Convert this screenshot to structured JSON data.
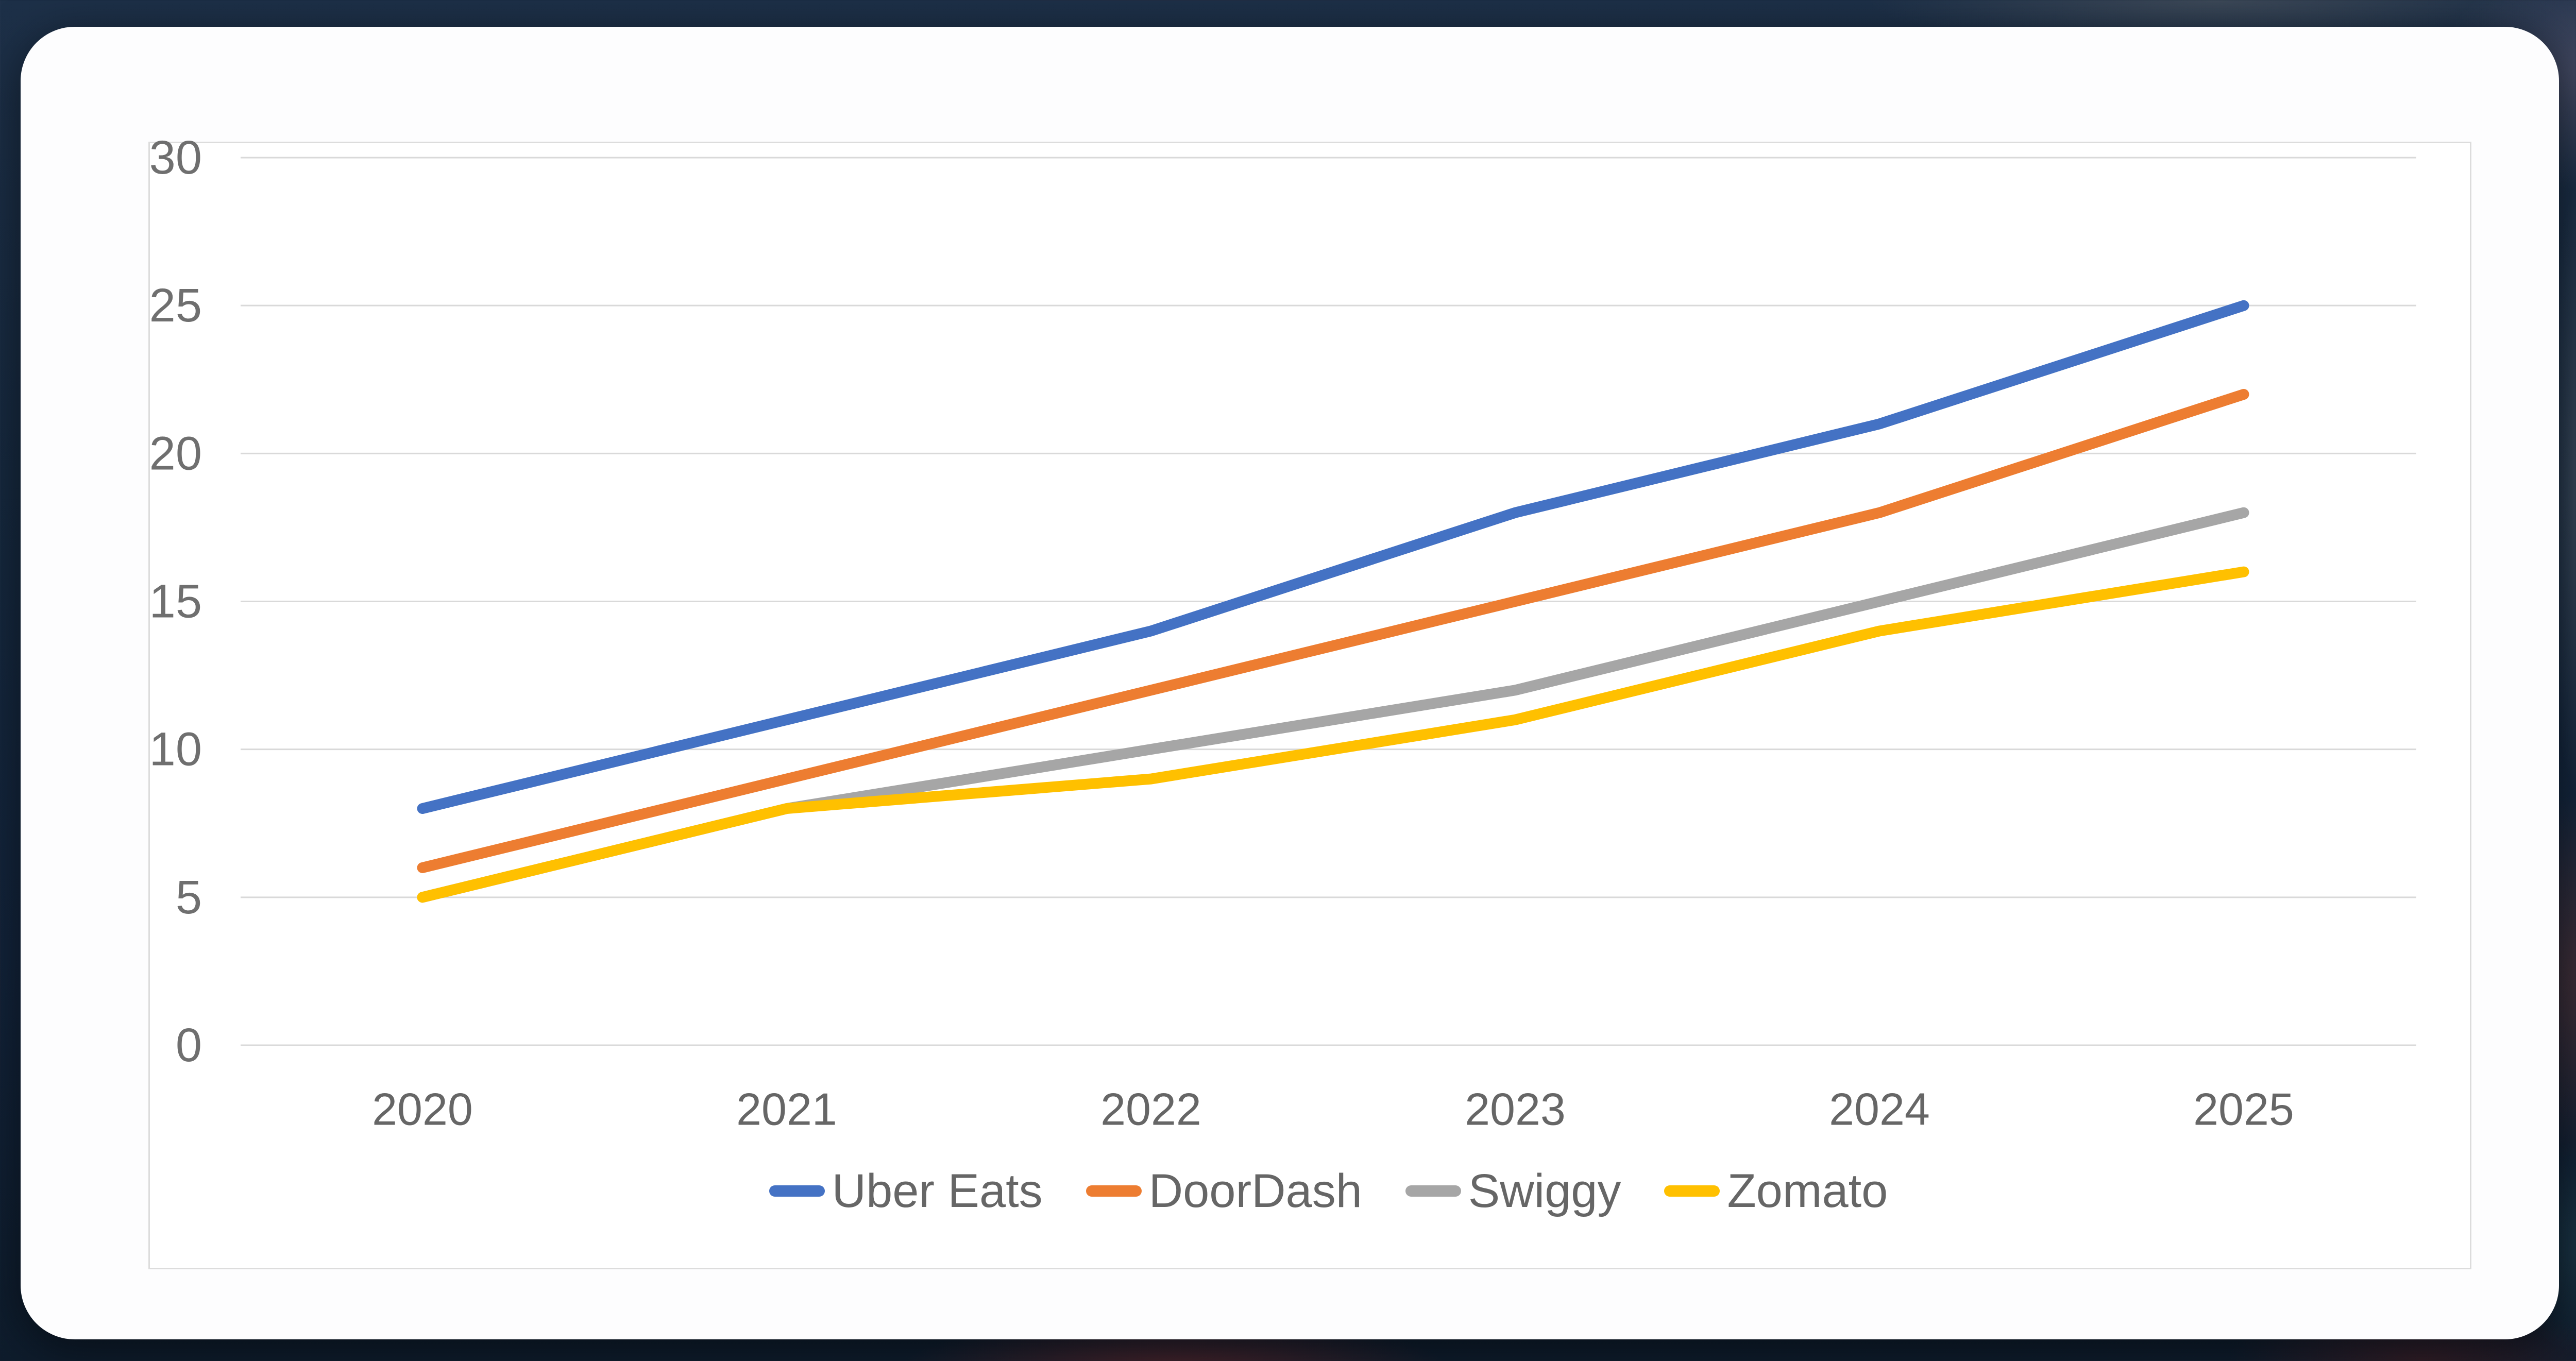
{
  "card": {
    "background": "#fdfdfe",
    "frame_border_color": "#dcdcdc"
  },
  "chart_data": {
    "type": "line",
    "title": "",
    "categories": [
      "2020",
      "2021",
      "2022",
      "2023",
      "2024",
      "2025"
    ],
    "series": [
      {
        "name": "Uber Eats",
        "color": "#4472C4",
        "values": [
          8,
          11,
          14,
          18,
          21,
          25
        ]
      },
      {
        "name": "DoorDash",
        "color": "#ED7D31",
        "values": [
          6,
          9,
          12,
          15,
          18,
          22
        ]
      },
      {
        "name": "Swiggy",
        "color": "#A6A6A6",
        "values": [
          5,
          8,
          10,
          12,
          15,
          18
        ]
      },
      {
        "name": "Zomato",
        "color": "#FFC000",
        "values": [
          5,
          8,
          9,
          11,
          14,
          16
        ]
      }
    ],
    "ylim": [
      0,
      30
    ],
    "yticks": [
      0,
      5,
      10,
      15,
      20,
      25,
      30
    ],
    "xlabel": "",
    "ylabel": "",
    "grid": true,
    "gridline_color": "#d9d9d9",
    "axis_tick_color": "#6f6f6f",
    "x_label_color": "#666666",
    "legend_position": "bottom",
    "legend_text_color": "#666666"
  }
}
